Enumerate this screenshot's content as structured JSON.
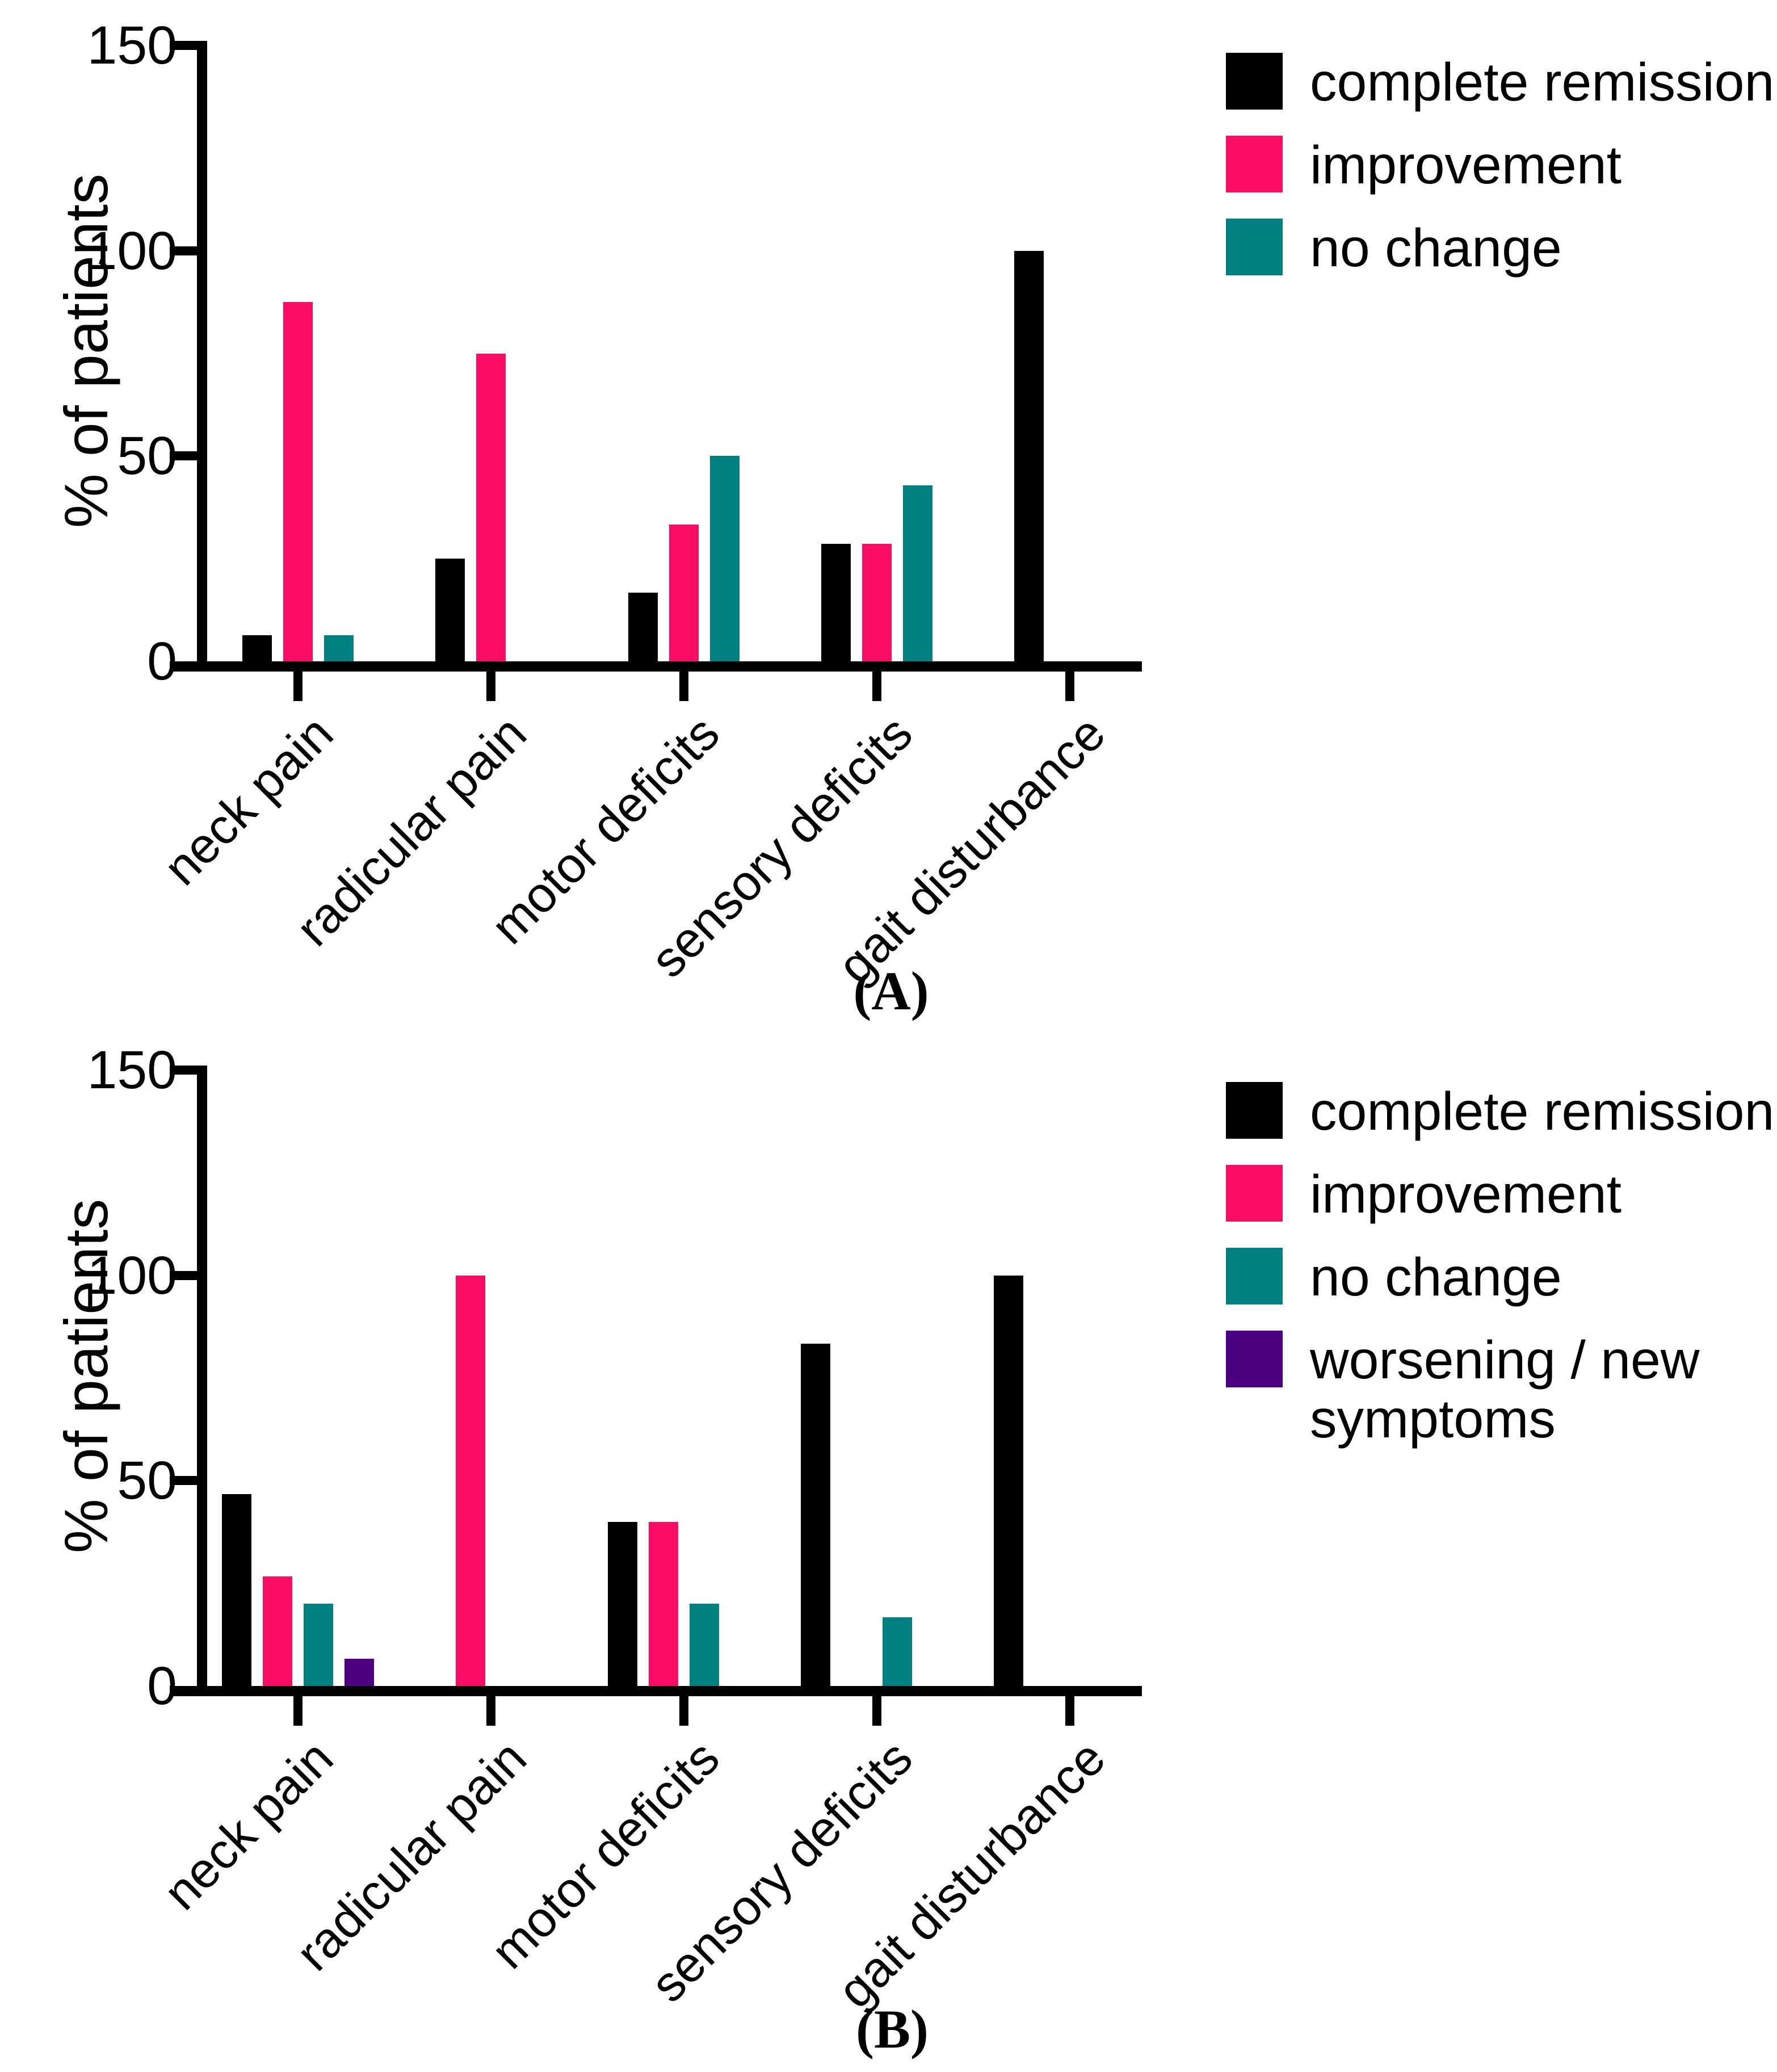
{
  "figure": {
    "background": "#ffffff",
    "panel_a_caption": "(A)",
    "panel_b_caption": "(B)"
  },
  "colors": {
    "complete_remission": "#000000",
    "improvement": "#FB0D66",
    "no_change": "#008080",
    "worsening_new_symptoms": "#4B0082"
  },
  "chart_data": [
    {
      "type": "bar",
      "panel_label": "(A)",
      "ylabel": "% of patients",
      "xlabel": "",
      "ylim": [
        0,
        150
      ],
      "yticks": [
        0,
        50,
        100,
        150
      ],
      "grid": false,
      "legend_position": "top-right",
      "categories": [
        "neck pain",
        "radicular pain",
        "motor deficits",
        "sensory deficits",
        "gait disturbance"
      ],
      "series": [
        {
          "name": "complete remission",
          "color": "#000000",
          "values": [
            6.3,
            25,
            16.7,
            28.6,
            100
          ]
        },
        {
          "name": "improvement",
          "color": "#FB0D66",
          "values": [
            87.5,
            75,
            33.3,
            28.6,
            0
          ]
        },
        {
          "name": "no change",
          "color": "#008080",
          "values": [
            6.3,
            0,
            50,
            42.9,
            0
          ]
        }
      ],
      "legend_lines": [
        [
          "complete remission"
        ],
        [
          "improvement"
        ],
        [
          "no change"
        ]
      ]
    },
    {
      "type": "bar",
      "panel_label": "(B)",
      "ylabel": "% of patients",
      "xlabel": "",
      "ylim": [
        0,
        150
      ],
      "yticks": [
        0,
        50,
        100,
        150
      ],
      "grid": false,
      "legend_position": "top-right",
      "categories": [
        "neck pain",
        "radicular pain",
        "motor deficits",
        "sensory deficits",
        "gait disturbance"
      ],
      "series": [
        {
          "name": "complete remission",
          "color": "#000000",
          "values": [
            46.7,
            0,
            40,
            83.3,
            100
          ]
        },
        {
          "name": "improvement",
          "color": "#FB0D66",
          "values": [
            26.7,
            100,
            40,
            0,
            0
          ]
        },
        {
          "name": "no change",
          "color": "#008080",
          "values": [
            20,
            0,
            20,
            16.7,
            0
          ]
        },
        {
          "name": "worsening / new symptoms",
          "color": "#4B0082",
          "values": [
            6.7,
            0,
            0,
            0,
            0
          ]
        }
      ],
      "legend_lines": [
        [
          "complete remission"
        ],
        [
          "improvement"
        ],
        [
          "no change"
        ],
        [
          "worsening / new",
          "symptoms"
        ]
      ]
    }
  ]
}
